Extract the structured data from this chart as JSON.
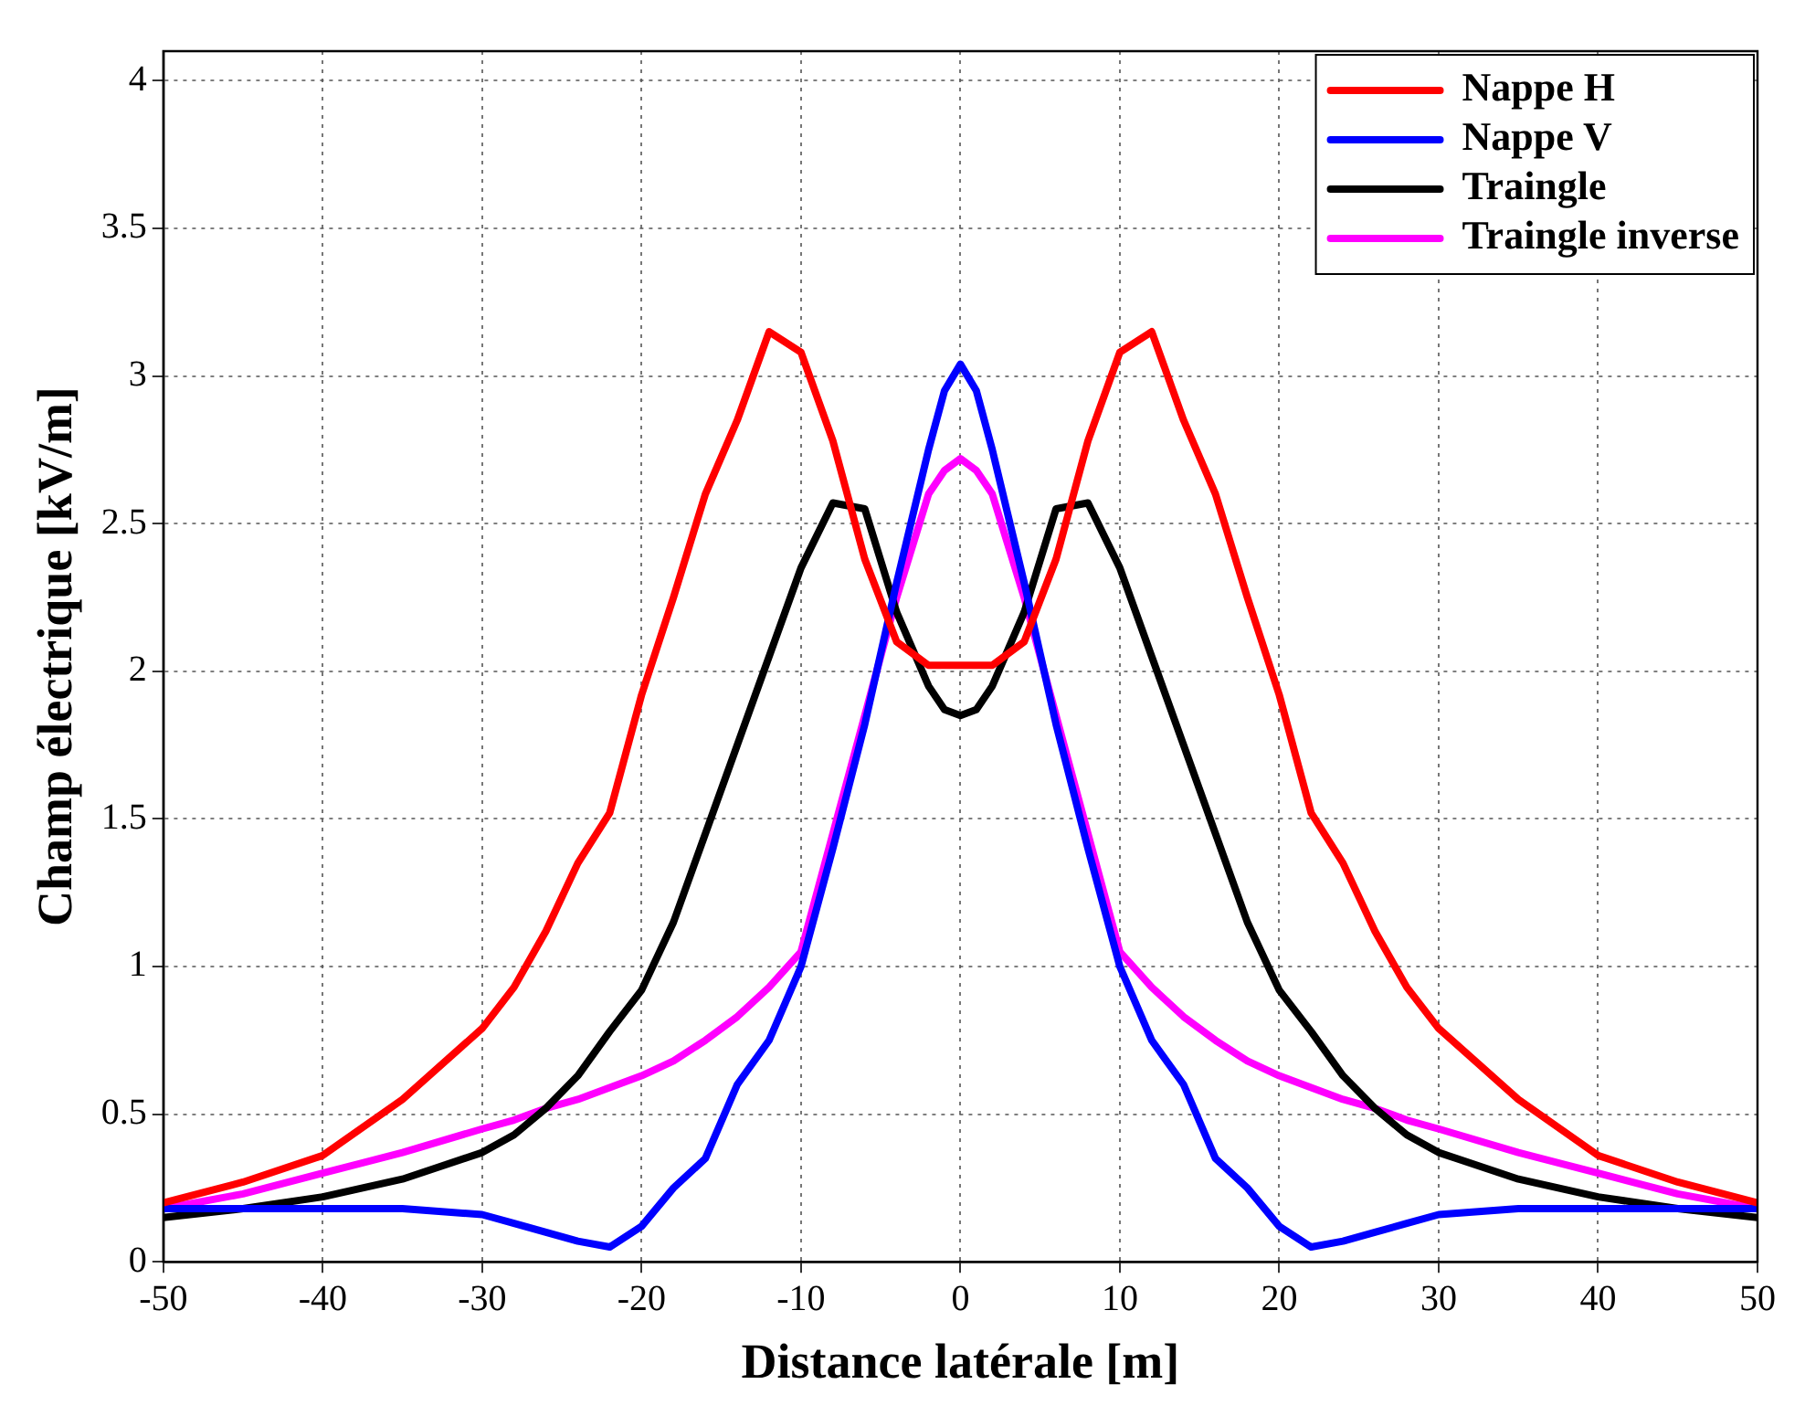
{
  "chart_data": {
    "type": "line",
    "xlabel": "Distance latérale [m]",
    "ylabel": "Champ électrique [kV/m]",
    "x": [
      -50,
      -45,
      -40,
      -35,
      -30,
      -28,
      -26,
      -24,
      -22,
      -20,
      -18,
      -16,
      -14,
      -12,
      -10,
      -8,
      -6,
      -4,
      -2,
      -1,
      0,
      1,
      2,
      4,
      6,
      8,
      10,
      12,
      14,
      16,
      18,
      20,
      22,
      24,
      26,
      28,
      30,
      35,
      40,
      45,
      50
    ],
    "xlim": [
      -50,
      50
    ],
    "xticks": [
      -50,
      -40,
      -30,
      -20,
      -10,
      0,
      10,
      20,
      30,
      40,
      50
    ],
    "ylim": [
      0,
      4.1
    ],
    "yticks": [
      0,
      0.5,
      1,
      1.5,
      2,
      2.5,
      3,
      3.5,
      4
    ],
    "grid": true,
    "legend": "top right",
    "marker": "none",
    "line_style": "solid",
    "series": [
      {
        "name": "Nappe H",
        "color": "#ff0000",
        "values": [
          0.2,
          0.27,
          0.36,
          0.55,
          0.79,
          0.93,
          1.12,
          1.35,
          1.52,
          1.92,
          2.25,
          2.6,
          2.85,
          3.15,
          3.08,
          2.78,
          2.38,
          2.1,
          2.02,
          2.02,
          2.02,
          2.02,
          2.02,
          2.1,
          2.38,
          2.78,
          3.08,
          3.15,
          2.85,
          2.6,
          2.25,
          1.92,
          1.52,
          1.35,
          1.12,
          0.93,
          0.79,
          0.55,
          0.36,
          0.27,
          0.2
        ]
      },
      {
        "name": "Nappe V",
        "color": "#0000ff",
        "values": [
          0.18,
          0.18,
          0.18,
          0.18,
          0.16,
          0.13,
          0.1,
          0.07,
          0.05,
          0.12,
          0.25,
          0.35,
          0.6,
          0.75,
          1.0,
          1.4,
          1.82,
          2.3,
          2.75,
          2.95,
          3.04,
          2.95,
          2.75,
          2.3,
          1.82,
          1.4,
          1.0,
          0.75,
          0.6,
          0.35,
          0.25,
          0.12,
          0.05,
          0.07,
          0.1,
          0.13,
          0.16,
          0.18,
          0.18,
          0.18,
          0.18
        ]
      },
      {
        "name": "Traingle",
        "color": "#000000",
        "values": [
          0.15,
          0.18,
          0.22,
          0.28,
          0.37,
          0.43,
          0.52,
          0.63,
          0.78,
          0.92,
          1.15,
          1.45,
          1.75,
          2.05,
          2.35,
          2.57,
          2.55,
          2.2,
          1.95,
          1.87,
          1.85,
          1.87,
          1.95,
          2.2,
          2.55,
          2.57,
          2.35,
          2.05,
          1.75,
          1.45,
          1.15,
          0.92,
          0.78,
          0.63,
          0.52,
          0.43,
          0.37,
          0.28,
          0.22,
          0.18,
          0.15
        ]
      },
      {
        "name": "Traingle inverse",
        "color": "#ff00ff",
        "values": [
          0.18,
          0.23,
          0.3,
          0.37,
          0.45,
          0.48,
          0.52,
          0.55,
          0.59,
          0.63,
          0.68,
          0.75,
          0.83,
          0.93,
          1.05,
          1.45,
          1.85,
          2.25,
          2.6,
          2.68,
          2.72,
          2.68,
          2.6,
          2.25,
          1.85,
          1.45,
          1.05,
          0.93,
          0.83,
          0.75,
          0.68,
          0.63,
          0.59,
          0.55,
          0.52,
          0.48,
          0.45,
          0.37,
          0.3,
          0.23,
          0.18
        ]
      }
    ]
  }
}
